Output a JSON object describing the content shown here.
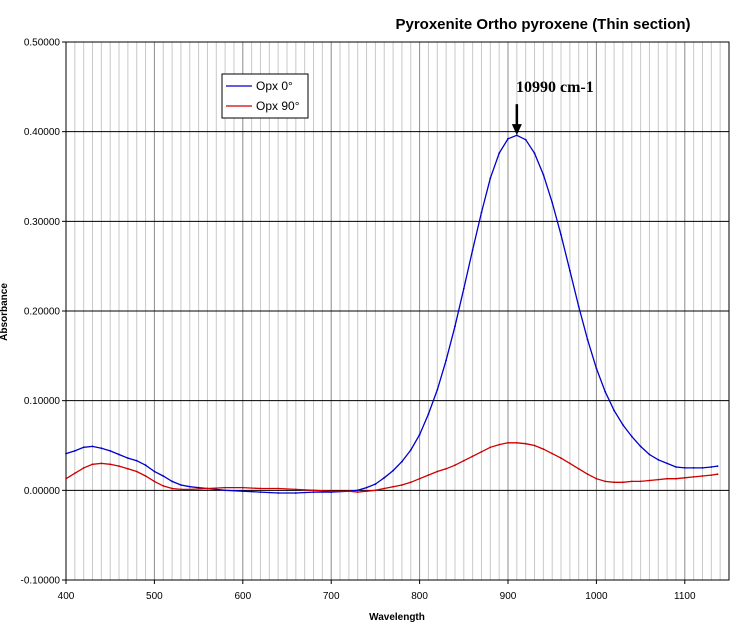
{
  "chart_data": {
    "type": "line",
    "title": "Pyroxenite Ortho pyroxene (Thin section)",
    "xlabel": "Wavelength",
    "ylabel": "Absorbance",
    "xlim": [
      400,
      1150
    ],
    "ylim": [
      -0.1,
      0.5
    ],
    "x_ticks": [
      "400",
      "500",
      "600",
      "700",
      "800",
      "900",
      "1000",
      "1100"
    ],
    "y_ticks": [
      "-0.10000",
      "0.00000",
      "0.10000",
      "0.20000",
      "0.30000",
      "0.40000",
      "0.50000"
    ],
    "grid": true,
    "legend_position": "top-left",
    "annotation": {
      "text": "10990 cm-1",
      "x": 910,
      "y": 0.395
    },
    "series": [
      {
        "name": "Opx 0°",
        "color": "#0000cc",
        "points": [
          [
            400,
            0.041
          ],
          [
            410,
            0.044
          ],
          [
            420,
            0.048
          ],
          [
            430,
            0.049
          ],
          [
            440,
            0.047
          ],
          [
            450,
            0.044
          ],
          [
            460,
            0.04
          ],
          [
            470,
            0.036
          ],
          [
            480,
            0.033
          ],
          [
            490,
            0.028
          ],
          [
            500,
            0.021
          ],
          [
            510,
            0.016
          ],
          [
            520,
            0.01
          ],
          [
            530,
            0.006
          ],
          [
            540,
            0.004
          ],
          [
            550,
            0.003
          ],
          [
            560,
            0.002
          ],
          [
            570,
            0.001
          ],
          [
            580,
            0.0
          ],
          [
            600,
            -0.001
          ],
          [
            620,
            -0.002
          ],
          [
            640,
            -0.003
          ],
          [
            660,
            -0.003
          ],
          [
            680,
            -0.002
          ],
          [
            700,
            -0.002
          ],
          [
            720,
            -0.001
          ],
          [
            730,
            0.0
          ],
          [
            740,
            0.003
          ],
          [
            750,
            0.007
          ],
          [
            760,
            0.014
          ],
          [
            770,
            0.022
          ],
          [
            780,
            0.032
          ],
          [
            790,
            0.045
          ],
          [
            800,
            0.062
          ],
          [
            810,
            0.085
          ],
          [
            820,
            0.112
          ],
          [
            830,
            0.145
          ],
          [
            840,
            0.183
          ],
          [
            850,
            0.225
          ],
          [
            860,
            0.268
          ],
          [
            870,
            0.31
          ],
          [
            880,
            0.348
          ],
          [
            890,
            0.376
          ],
          [
            900,
            0.392
          ],
          [
            910,
            0.396
          ],
          [
            920,
            0.391
          ],
          [
            930,
            0.376
          ],
          [
            940,
            0.352
          ],
          [
            950,
            0.321
          ],
          [
            960,
            0.285
          ],
          [
            970,
            0.245
          ],
          [
            980,
            0.205
          ],
          [
            990,
            0.168
          ],
          [
            1000,
            0.136
          ],
          [
            1010,
            0.11
          ],
          [
            1020,
            0.089
          ],
          [
            1030,
            0.073
          ],
          [
            1040,
            0.06
          ],
          [
            1050,
            0.049
          ],
          [
            1060,
            0.04
          ],
          [
            1070,
            0.034
          ],
          [
            1080,
            0.03
          ],
          [
            1090,
            0.026
          ],
          [
            1100,
            0.025
          ],
          [
            1110,
            0.025
          ],
          [
            1120,
            0.025
          ],
          [
            1130,
            0.026
          ],
          [
            1137,
            0.027
          ]
        ]
      },
      {
        "name": "Opx 90°",
        "color": "#cc0000",
        "points": [
          [
            400,
            0.013
          ],
          [
            410,
            0.019
          ],
          [
            420,
            0.025
          ],
          [
            430,
            0.029
          ],
          [
            440,
            0.03
          ],
          [
            450,
            0.029
          ],
          [
            460,
            0.027
          ],
          [
            470,
            0.024
          ],
          [
            480,
            0.021
          ],
          [
            490,
            0.016
          ],
          [
            500,
            0.01
          ],
          [
            510,
            0.005
          ],
          [
            520,
            0.002
          ],
          [
            530,
            0.001
          ],
          [
            540,
            0.001
          ],
          [
            560,
            0.002
          ],
          [
            580,
            0.003
          ],
          [
            600,
            0.003
          ],
          [
            620,
            0.002
          ],
          [
            640,
            0.002
          ],
          [
            660,
            0.001
          ],
          [
            680,
            0.0
          ],
          [
            700,
            -0.001
          ],
          [
            720,
            -0.001
          ],
          [
            730,
            -0.002
          ],
          [
            740,
            -0.001
          ],
          [
            750,
            0.0
          ],
          [
            760,
            0.002
          ],
          [
            770,
            0.004
          ],
          [
            780,
            0.006
          ],
          [
            790,
            0.009
          ],
          [
            800,
            0.013
          ],
          [
            810,
            0.017
          ],
          [
            820,
            0.021
          ],
          [
            830,
            0.024
          ],
          [
            840,
            0.028
          ],
          [
            850,
            0.033
          ],
          [
            860,
            0.038
          ],
          [
            870,
            0.043
          ],
          [
            880,
            0.048
          ],
          [
            890,
            0.051
          ],
          [
            900,
            0.053
          ],
          [
            910,
            0.053
          ],
          [
            920,
            0.052
          ],
          [
            930,
            0.05
          ],
          [
            940,
            0.046
          ],
          [
            950,
            0.041
          ],
          [
            960,
            0.036
          ],
          [
            970,
            0.03
          ],
          [
            980,
            0.024
          ],
          [
            990,
            0.018
          ],
          [
            1000,
            0.013
          ],
          [
            1010,
            0.01
          ],
          [
            1020,
            0.009
          ],
          [
            1030,
            0.009
          ],
          [
            1040,
            0.01
          ],
          [
            1050,
            0.01
          ],
          [
            1060,
            0.011
          ],
          [
            1070,
            0.012
          ],
          [
            1080,
            0.013
          ],
          [
            1090,
            0.013
          ],
          [
            1100,
            0.014
          ],
          [
            1110,
            0.015
          ],
          [
            1120,
            0.016
          ],
          [
            1130,
            0.017
          ],
          [
            1137,
            0.018
          ]
        ]
      }
    ]
  }
}
